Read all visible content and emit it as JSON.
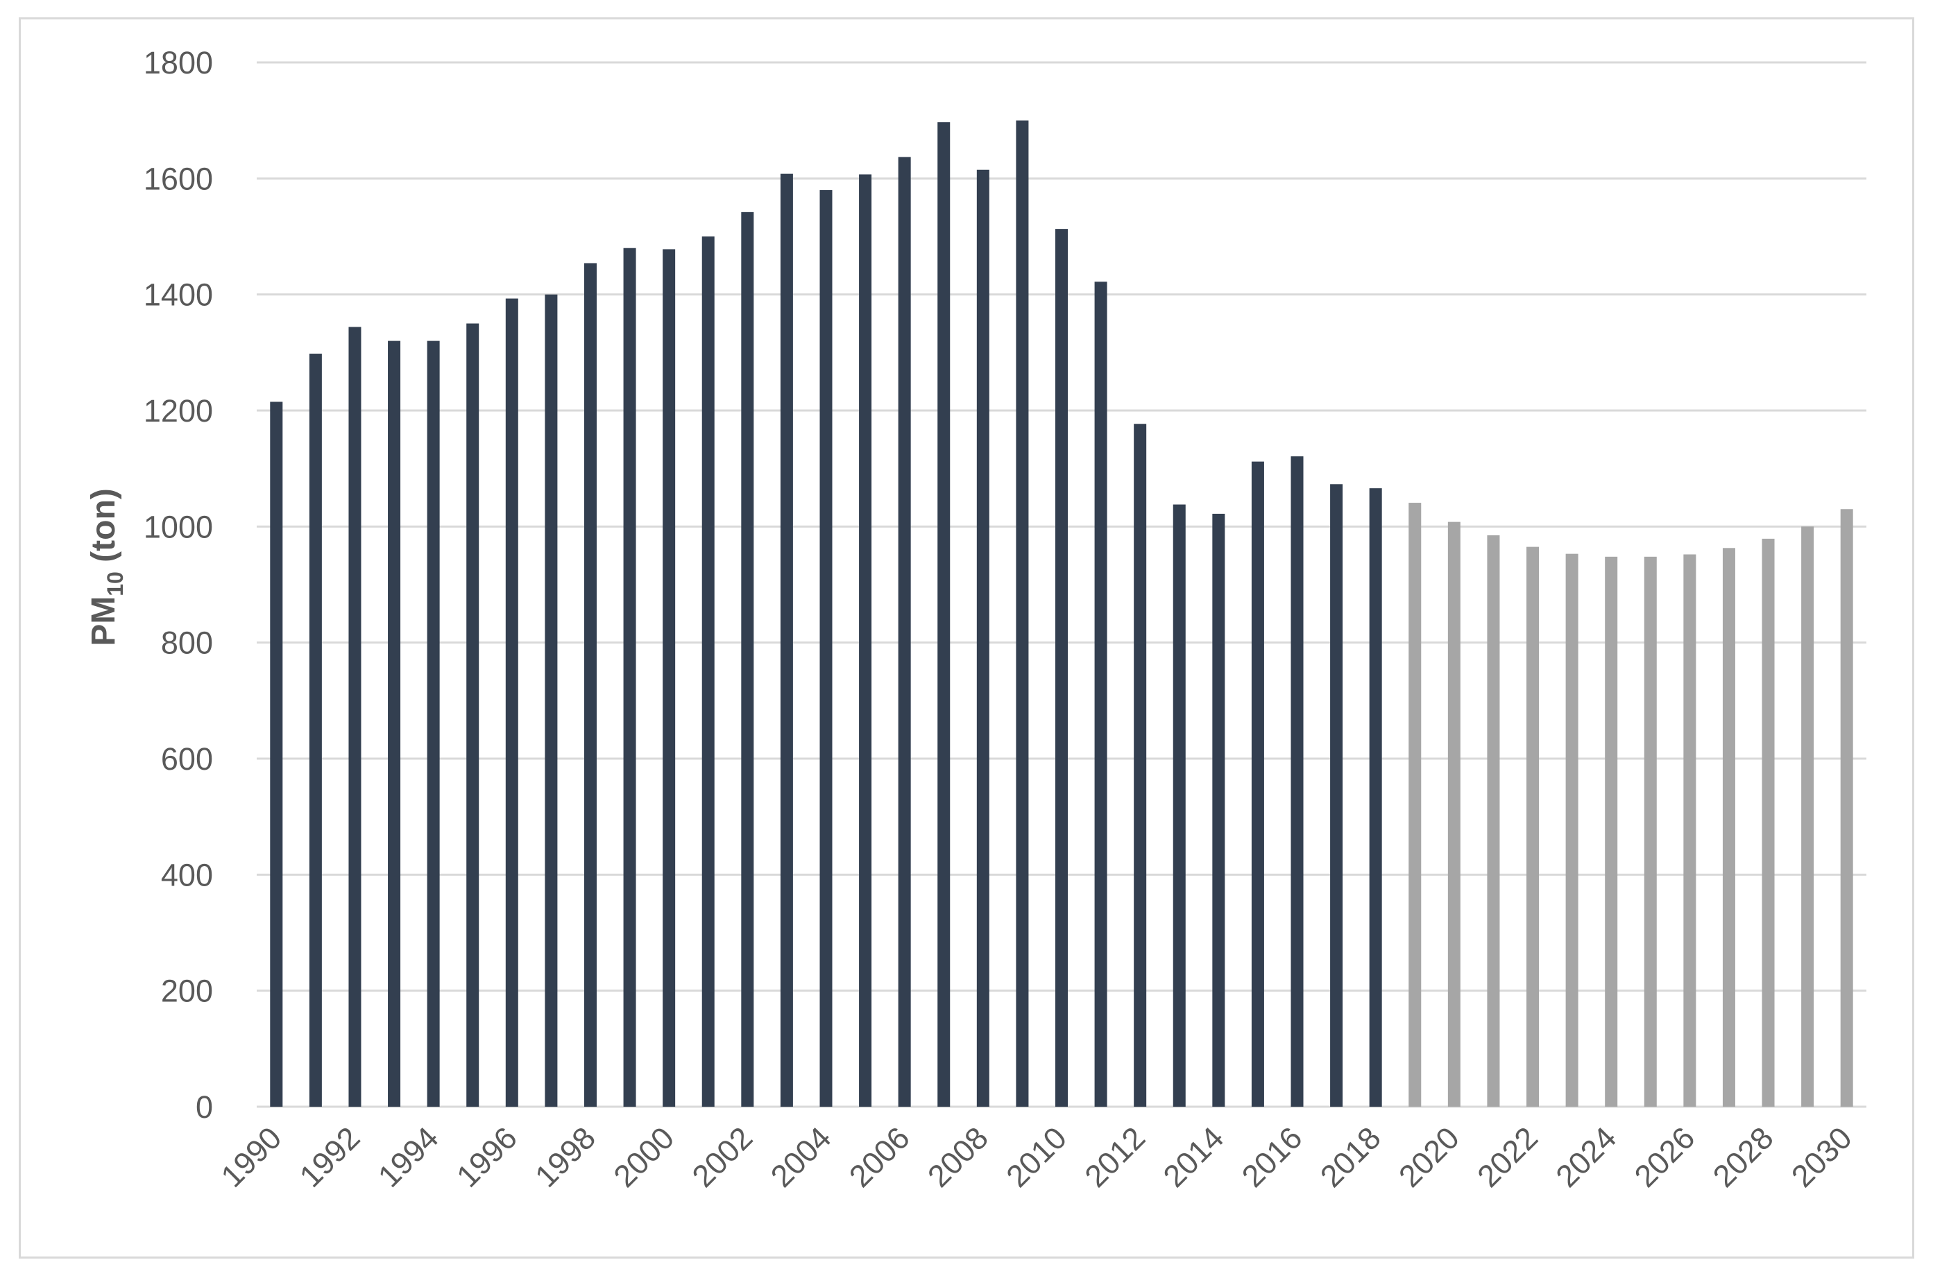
{
  "chart_data": {
    "type": "bar",
    "title": "",
    "xlabel": "",
    "ylabel": "PM10 (ton)",
    "ylabel_parts": {
      "main": "PM",
      "subscript": "10",
      "suffix": " (ton)"
    },
    "ylim": [
      0,
      1800
    ],
    "yticks": [
      0,
      200,
      400,
      600,
      800,
      1000,
      1200,
      1400,
      1600,
      1800
    ],
    "grid": true,
    "legend": "none",
    "categories": [
      1990,
      1991,
      1992,
      1993,
      1994,
      1995,
      1996,
      1997,
      1998,
      1999,
      2000,
      2001,
      2002,
      2003,
      2004,
      2005,
      2006,
      2007,
      2008,
      2009,
      2010,
      2011,
      2012,
      2013,
      2014,
      2015,
      2016,
      2017,
      2018,
      2019,
      2020,
      2021,
      2022,
      2023,
      2024,
      2025,
      2026,
      2027,
      2028,
      2029,
      2030
    ],
    "xtick_labels": [
      "1990",
      "1992",
      "1994",
      "1996",
      "1998",
      "2000",
      "2002",
      "2004",
      "2006",
      "2008",
      "2010",
      "2012",
      "2014",
      "2016",
      "2018",
      "2020",
      "2022",
      "2024",
      "2026",
      "2028",
      "2030"
    ],
    "series": [
      {
        "color": "#333f50",
        "x": [
          1990,
          1991,
          1992,
          1993,
          1994,
          1995,
          1996,
          1997,
          1998,
          1999,
          2000,
          2001,
          2002,
          2003,
          2004,
          2005,
          2006,
          2007,
          2008,
          2009,
          2010,
          2011,
          2012,
          2013,
          2014,
          2015,
          2016,
          2017,
          2018
        ],
        "values": [
          1215,
          1298,
          1344,
          1320,
          1320,
          1350,
          1393,
          1400,
          1454,
          1480,
          1478,
          1500,
          1542,
          1608,
          1580,
          1607,
          1637,
          1697,
          1615,
          1700,
          1513,
          1422,
          1177,
          1038,
          1022,
          1112,
          1121,
          1073,
          1066
        ]
      },
      {
        "color": "#a6a6a6",
        "x": [
          2019,
          2020,
          2021,
          2022,
          2023,
          2024,
          2025,
          2026,
          2027,
          2028,
          2029,
          2030
        ],
        "values": [
          1041,
          1008,
          985,
          965,
          953,
          948,
          948,
          952,
          963,
          979,
          1000,
          1030
        ]
      }
    ]
  }
}
